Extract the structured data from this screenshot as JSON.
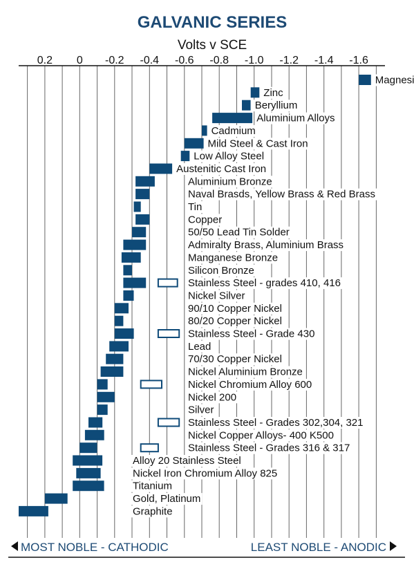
{
  "chart_data": {
    "type": "bar",
    "subtype": "floating-range",
    "title": "GALVANIC SERIES",
    "xlabel": "Volts v SCE",
    "xlim": [
      0.35,
      -1.75
    ],
    "xticks": [
      0.2,
      0,
      -0.2,
      -0.4,
      -0.6,
      -0.8,
      -1.0,
      -1.2,
      -1.4,
      -1.6
    ],
    "xtick_labels": [
      "0.2",
      "0",
      "-0.2",
      "-0.4",
      "-0.6",
      "-0.8",
      "-1.0",
      "-1.2",
      "-1.4",
      "-1.6"
    ],
    "grid": true,
    "colors": {
      "filled": "#0e4a78",
      "outline": "#0e4a78",
      "grid": "#666666",
      "title": "#1d4a74"
    },
    "series": [
      {
        "name": "Magnesium",
        "range": [
          -1.6,
          -1.67
        ]
      },
      {
        "name": "Zinc",
        "range": [
          -0.98,
          -1.03
        ]
      },
      {
        "name": "Beryllium",
        "range": [
          -0.93,
          -0.98
        ]
      },
      {
        "name": "Aluminium Alloys",
        "range": [
          -0.76,
          -0.99
        ]
      },
      {
        "name": "Cadmium",
        "range": [
          -0.7,
          -0.73
        ]
      },
      {
        "name": "Mild Steel & Cast Iron",
        "range": [
          -0.6,
          -0.71
        ]
      },
      {
        "name": "Low Alloy Steel",
        "range": [
          -0.58,
          -0.63
        ]
      },
      {
        "name": "Austenitic Cast Iron",
        "range": [
          -0.4,
          -0.53
        ]
      },
      {
        "name": "Aluminium Bronze",
        "range": [
          -0.32,
          -0.43
        ]
      },
      {
        "name": "Naval Brasds, Yellow Brass & Red Brass",
        "range": [
          -0.32,
          -0.4
        ]
      },
      {
        "name": "Tin",
        "range": [
          -0.31,
          -0.35
        ]
      },
      {
        "name": "Copper",
        "range": [
          -0.32,
          -0.4
        ]
      },
      {
        "name": "50/50 Lead Tin Solder",
        "range": [
          -0.3,
          -0.38
        ]
      },
      {
        "name": "Admiralty Brass, Aluminium Brass",
        "range": [
          -0.25,
          -0.38
        ]
      },
      {
        "name": "Manganese Bronze",
        "range": [
          -0.24,
          -0.35
        ]
      },
      {
        "name": "Silicon Bronze",
        "range": [
          -0.25,
          -0.3
        ]
      },
      {
        "name": "Stainless Steel - grades 410, 416",
        "range": [
          -0.25,
          -0.38
        ],
        "passive_range": [
          -0.45,
          -0.56
        ]
      },
      {
        "name": "Nickel Silver",
        "range": [
          -0.25,
          -0.31
        ]
      },
      {
        "name": "90/10 Copper Nickel",
        "range": [
          -0.2,
          -0.28
        ]
      },
      {
        "name": "80/20 Copper Nickel",
        "range": [
          -0.2,
          -0.25
        ]
      },
      {
        "name": "Stainless Steel - Grade 430",
        "range": [
          -0.2,
          -0.31
        ],
        "passive_range": [
          -0.45,
          -0.57
        ]
      },
      {
        "name": "Lead",
        "range": [
          -0.17,
          -0.28
        ]
      },
      {
        "name": "70/30 Copper Nickel",
        "range": [
          -0.15,
          -0.25
        ]
      },
      {
        "name": "Nickel Aluminium Bronze",
        "range": [
          -0.12,
          -0.25
        ]
      },
      {
        "name": "Nickel Chromium Alloy 600",
        "range": [
          -0.1,
          -0.16
        ],
        "passive_range": [
          -0.35,
          -0.47
        ]
      },
      {
        "name": "Nickel 200",
        "range": [
          -0.1,
          -0.2
        ]
      },
      {
        "name": "Silver",
        "range": [
          -0.1,
          -0.16
        ]
      },
      {
        "name": "Stainless Steel - Grades 302,304, 321",
        "range": [
          -0.05,
          -0.13
        ],
        "passive_range": [
          -0.45,
          -0.57
        ]
      },
      {
        "name": "Nickel Copper Alloys- 400 K500",
        "range": [
          -0.03,
          -0.14
        ]
      },
      {
        "name": "Stainless Steel  - Grades 316 & 317",
        "range": [
          0.0,
          -0.1
        ],
        "passive_range": [
          -0.35,
          -0.45
        ]
      },
      {
        "name": "Alloy 20 Stainless Steel",
        "range": [
          0.04,
          -0.13
        ]
      },
      {
        "name": "Nickel Iron Chromium Alloy 825",
        "range": [
          0.02,
          -0.12
        ]
      },
      {
        "name": "Titanium",
        "range": [
          0.04,
          -0.14
        ]
      },
      {
        "name": "Gold, Platinum",
        "range": [
          0.2,
          0.07
        ]
      },
      {
        "name": "Graphite",
        "range": [
          0.35,
          0.18
        ]
      }
    ],
    "footer": {
      "left": "MOST NOBLE - CATHODIC",
      "right": "LEAST NOBLE - ANODIC"
    }
  }
}
